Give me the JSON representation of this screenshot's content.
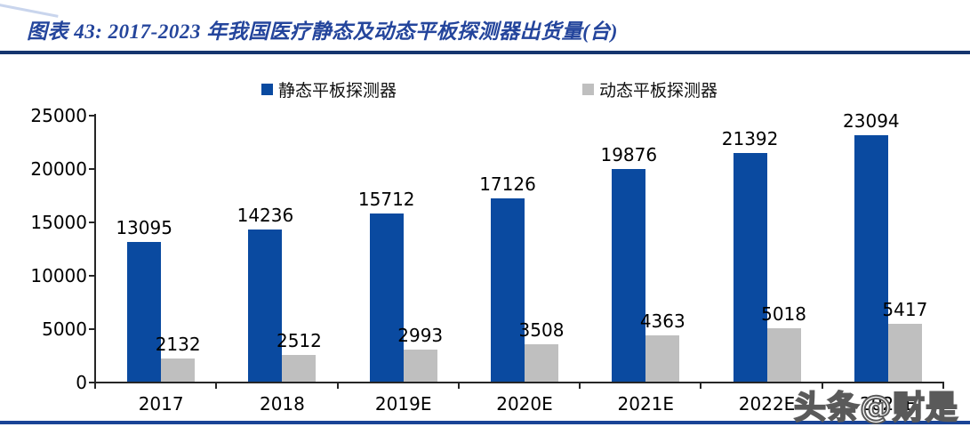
{
  "figure": {
    "title": "图表 43:  2017-2023 年我国医疗静态及动态平板探测器出货量(台)",
    "watermark": "头条@财是"
  },
  "colors": {
    "title_text": "#24459c",
    "title_rule": "#15356e",
    "bottom_rule": "#1a4496",
    "static_bar": "#0a4aa0",
    "dynamic_bar": "#bfbfbf",
    "axis": "#262626",
    "label_text": "#000000"
  },
  "chart_data": {
    "type": "bar",
    "title": "2017-2023 年我国医疗静态及动态平板探测器出货量(台)",
    "categories": [
      "2017",
      "2018",
      "2019E",
      "2020E",
      "2021E",
      "2022E",
      "2023E"
    ],
    "series": [
      {
        "name": "静态平板探测器",
        "color": "#0a4aa0",
        "values": [
          13095,
          14236,
          15712,
          17126,
          19876,
          21392,
          23094
        ]
      },
      {
        "name": "动态平板探测器",
        "color": "#bfbfbf",
        "values": [
          2132,
          2512,
          2993,
          3508,
          4363,
          5018,
          5417
        ]
      }
    ],
    "xlabel": "",
    "ylabel": "",
    "ylim": [
      0,
      25000
    ],
    "yticks": [
      0,
      5000,
      10000,
      15000,
      20000,
      25000
    ],
    "grid": false,
    "legend_position": "top-center",
    "data_labels": true
  }
}
